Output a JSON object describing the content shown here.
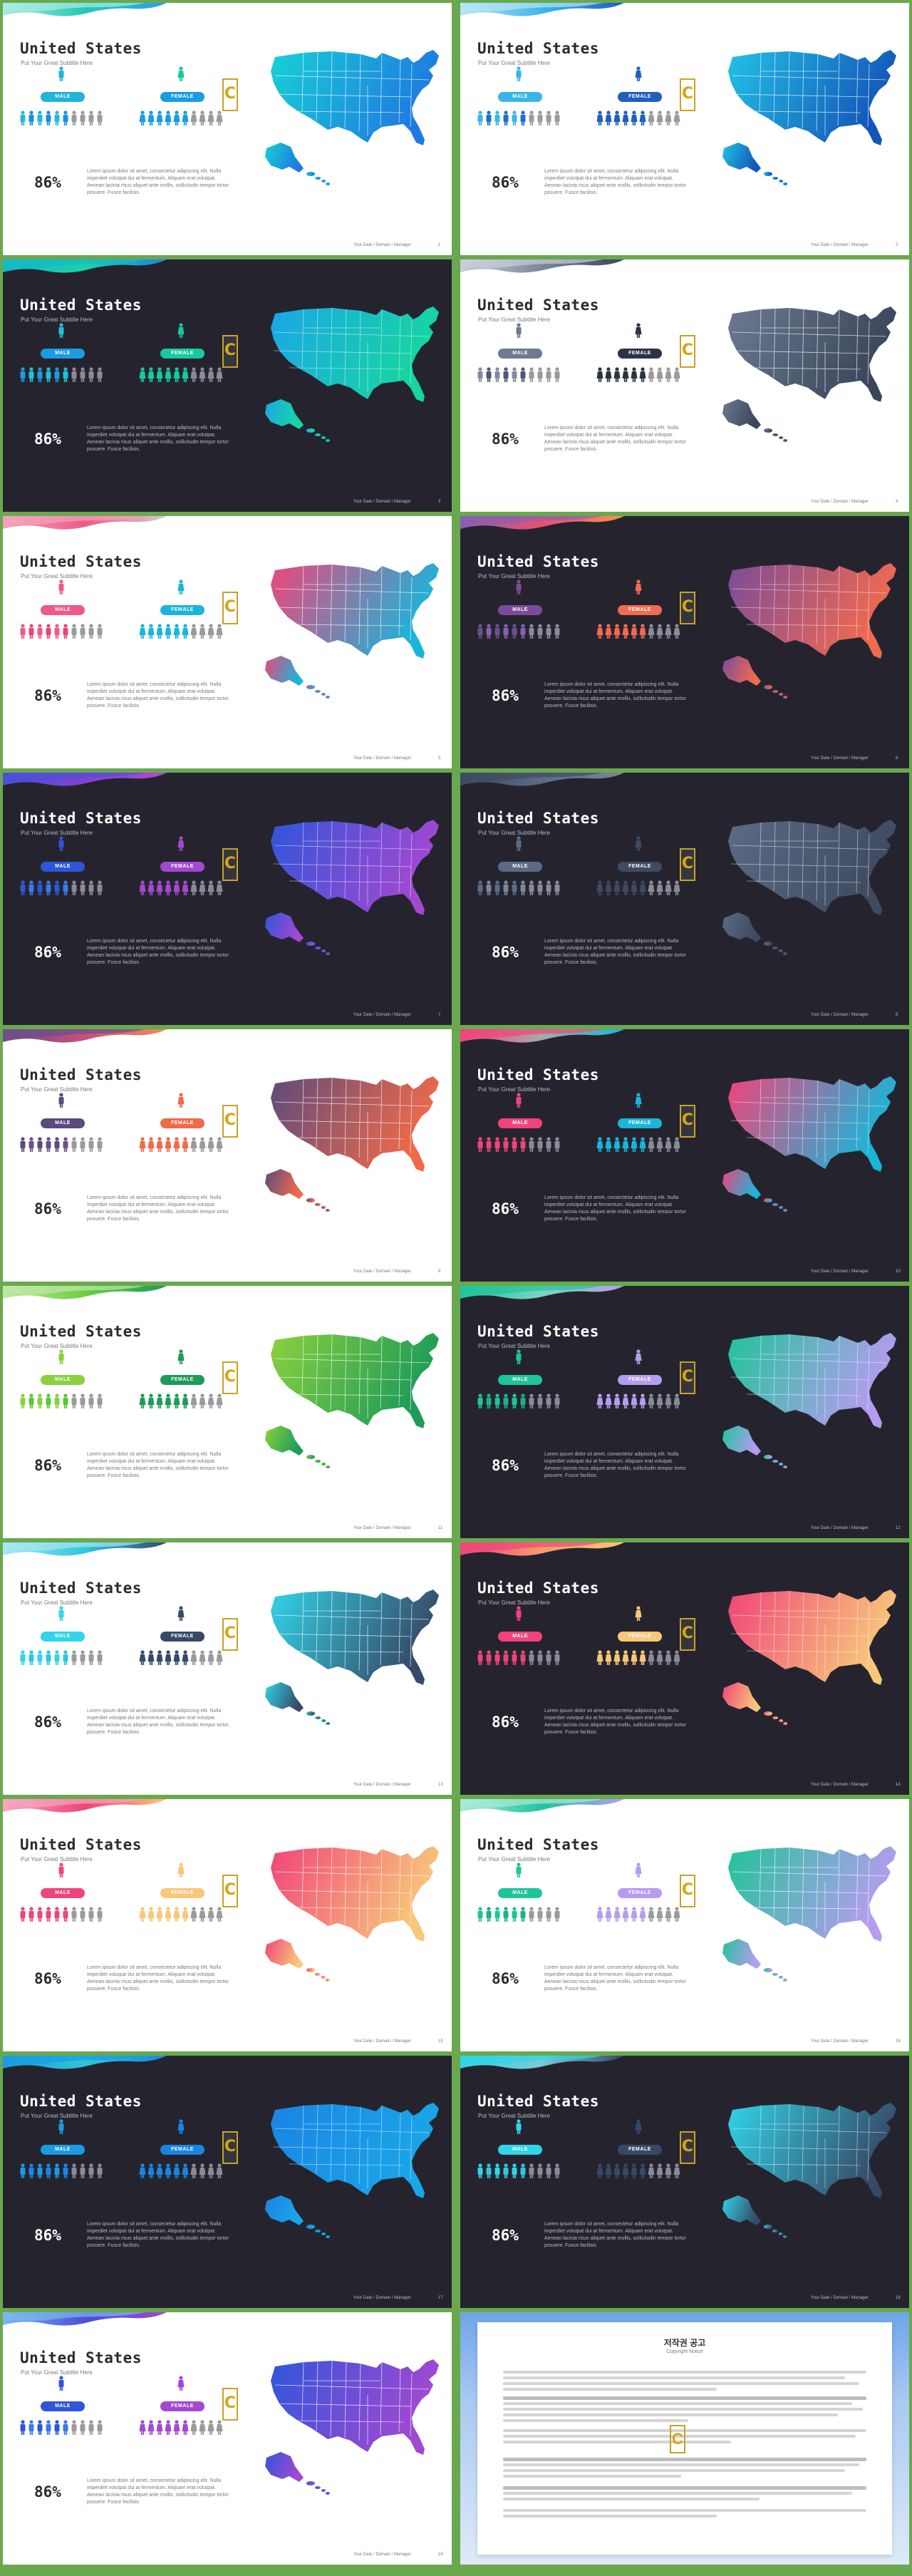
{
  "common": {
    "title": "United States",
    "subtitle": "Put Your Great Subtitle Here",
    "male_label": "MALE",
    "female_label": "FEMALE",
    "percent": "86%",
    "body": "Lorem ipsum dolor sit amet, consectetur adipiscing elit. Nulla imperdiet volutpat dui at fermentum. Aliquam erat volutpat. Aenean lacinia risus aliquet ante mollis, sollicitudin tempor tortor posuere. Fusce facilisis.",
    "footer": "Your Date / Domain / Manager",
    "brand_mark": "C"
  },
  "slides": [
    {
      "page": "1",
      "theme": "light",
      "accent": "#1aa3d8",
      "map": [
        "#17d1d6",
        "#1e7ae0"
      ],
      "wave": [
        "#a9ecdf",
        "#23c9b7",
        "#2aa0e6"
      ],
      "male": [
        "#26b8d9",
        "#1a8fe2"
      ],
      "female": [
        "#1a9be2",
        "#8a8a8a"
      ],
      "pill_m": "#22b3d9",
      "pill_f": "#1a9be2",
      "icon_m": "#22b3d9",
      "icon_f": "#18c8a0"
    },
    {
      "page": "2",
      "theme": "light",
      "accent": "#1a8fe2",
      "map": [
        "#22c2e6",
        "#1456b8"
      ],
      "wave": [
        "#b7e4f7",
        "#3fb6e8",
        "#1f5fbf"
      ],
      "male": [
        "#3ab6e6",
        "#1c6fd0"
      ],
      "female": [
        "#1f5fbf",
        "#8a8a8a"
      ],
      "pill_m": "#3ab6e6",
      "pill_f": "#1f5fbf",
      "icon_m": "#3ab6e6",
      "icon_f": "#1f5fbf"
    },
    {
      "page": "3",
      "theme": "dark",
      "accent": "#22b5e4",
      "map": [
        "#1aa6e8",
        "#17d6a0"
      ],
      "wave": [
        "#16b8c9",
        "#1cd1a6",
        "#1a84e3"
      ],
      "male": [
        "#1a9be2",
        "#1ac4d6"
      ],
      "female": [
        "#18c8a0",
        "#8a8a8a"
      ],
      "pill_m": "#1a9be2",
      "pill_f": "#18c8a0",
      "icon_m": "#1ac4d6",
      "icon_f": "#18c8a0"
    },
    {
      "page": "4",
      "theme": "light",
      "accent": "#4b5a74",
      "map": [
        "#6c7a92",
        "#3a455a"
      ],
      "wave": [
        "#c9cfd9",
        "#7a879c",
        "#3a455a"
      ],
      "male": [
        "#7f8ca2",
        "#4b5a74"
      ],
      "female": [
        "#2c3444",
        "#9a9a9a"
      ],
      "pill_m": "#6c7a92",
      "pill_f": "#2c3444",
      "icon_m": "#6c7a92",
      "icon_f": "#2c3444"
    },
    {
      "page": "5",
      "theme": "light",
      "accent": "#e8467a",
      "map": [
        "#f0447a",
        "#1ab5d9"
      ],
      "wave": [
        "#f3a3b9",
        "#ef5a86",
        "#cfcfcf"
      ],
      "male": [
        "#ef5a86",
        "#e8467a"
      ],
      "female": [
        "#1ab5d9",
        "#8a8a8a"
      ],
      "pill_m": "#ef5a86",
      "pill_f": "#1ab5d9",
      "icon_m": "#ef5a86",
      "icon_f": "#1ab5d9"
    },
    {
      "page": "6",
      "theme": "dark",
      "accent": "#f05a5a",
      "map": [
        "#7b4b9a",
        "#f26a4f"
      ],
      "wave": [
        "#8a5fb0",
        "#e9516e",
        "#f39253"
      ],
      "male": [
        "#6b4f90",
        "#8a5fb0"
      ],
      "female": [
        "#f26a4f",
        "#8a8a8a"
      ],
      "pill_m": "#7b4b9a",
      "pill_f": "#f26a4f",
      "icon_m": "#7b4b9a",
      "icon_f": "#f26a4f"
    },
    {
      "page": "7",
      "theme": "dark",
      "accent": "#3a63e0",
      "map": [
        "#2f56d9",
        "#a348d1"
      ],
      "wave": [
        "#4d4fd8",
        "#7e43cf",
        "#b34ad6"
      ],
      "male": [
        "#2f56d9",
        "#3a7ae6"
      ],
      "female": [
        "#a348d1",
        "#8a8a8a"
      ],
      "pill_m": "#2f56d9",
      "pill_f": "#a348d1",
      "icon_m": "#2f56d9",
      "icon_f": "#a348d1"
    },
    {
      "page": "8",
      "theme": "dark",
      "accent": "#5b6b86",
      "map": [
        "#5b6b86",
        "#3e4a60"
      ],
      "wave": [
        "#3e4a60",
        "#5b6b86",
        "#7a879c"
      ],
      "male": [
        "#5b6b86",
        "#7a879c"
      ],
      "female": [
        "#3e4a60",
        "#8a8a8a"
      ],
      "pill_m": "#5b6b86",
      "pill_f": "#3e4a60",
      "icon_m": "#5b6b86",
      "icon_f": "#3e4a60"
    },
    {
      "page": "9",
      "theme": "light",
      "accent": "#e8634c",
      "map": [
        "#5d4a7c",
        "#f06a4a"
      ],
      "wave": [
        "#6b4f88",
        "#c65080",
        "#f08d5a"
      ],
      "male": [
        "#5d4a7c",
        "#6b4f88"
      ],
      "female": [
        "#f06a4a",
        "#8a8a8a"
      ],
      "pill_m": "#5d4a7c",
      "pill_f": "#f06a4a",
      "icon_m": "#5d4a7c",
      "icon_f": "#f06a4a"
    },
    {
      "page": "10",
      "theme": "dark",
      "accent": "#f0447a",
      "map": [
        "#f0447a",
        "#1ab5d9"
      ],
      "wave": [
        "#f0447a",
        "#a9a9a9",
        "#1ab5d9"
      ],
      "male": [
        "#f0447a",
        "#e8467a"
      ],
      "female": [
        "#1ab5d9",
        "#8a8a8a"
      ],
      "pill_m": "#f0447a",
      "pill_f": "#1ab5d9",
      "icon_m": "#f0447a",
      "icon_f": "#1ab5d9"
    },
    {
      "page": "11",
      "theme": "light",
      "accent": "#5cc43a",
      "map": [
        "#8bd13e",
        "#1d9b58"
      ],
      "wave": [
        "#bfe8a4",
        "#6ccf3f",
        "#1d9b58"
      ],
      "male": [
        "#8bd13e",
        "#5cc43a"
      ],
      "female": [
        "#1d9b58",
        "#8a8a8a"
      ],
      "pill_m": "#8bd13e",
      "pill_f": "#1d9b58",
      "icon_m": "#8bd13e",
      "icon_f": "#1d9b58"
    },
    {
      "page": "12",
      "theme": "dark",
      "accent": "#20c49a",
      "map": [
        "#20c49a",
        "#b69cf0"
      ],
      "wave": [
        "#20c49a",
        "#7ad4c2",
        "#b69cf0"
      ],
      "male": [
        "#20c49a",
        "#1fae8c"
      ],
      "female": [
        "#b69cf0",
        "#8a8a8a"
      ],
      "pill_m": "#20c49a",
      "pill_f": "#b69cf0",
      "icon_m": "#20c49a",
      "icon_f": "#b69cf0"
    },
    {
      "page": "13",
      "theme": "light",
      "accent": "#2ec6de",
      "map": [
        "#31d4e8",
        "#364a68"
      ],
      "wave": [
        "#a6e8f2",
        "#31c6e0",
        "#364a68"
      ],
      "male": [
        "#31d4e8",
        "#2ec6de"
      ],
      "female": [
        "#364a68",
        "#8a8a8a"
      ],
      "pill_m": "#31d4e8",
      "pill_f": "#364a68",
      "icon_m": "#31d4e8",
      "icon_f": "#364a68"
    },
    {
      "page": "14",
      "theme": "dark",
      "accent": "#f0447a",
      "map": [
        "#f0447a",
        "#f8c77a"
      ],
      "wave": [
        "#f0447a",
        "#f59a6f",
        "#f8c77a"
      ],
      "male": [
        "#f0447a",
        "#e8467a"
      ],
      "female": [
        "#f8c77a",
        "#8a8a8a"
      ],
      "pill_m": "#f0447a",
      "pill_f": "#f8c77a",
      "icon_m": "#f0447a",
      "icon_f": "#f8c77a"
    },
    {
      "page": "15",
      "theme": "light",
      "accent": "#e8467a",
      "map": [
        "#f0447a",
        "#f8c77a"
      ],
      "wave": [
        "#f6a6bf",
        "#f0447a",
        "#f8c77a"
      ],
      "male": [
        "#f0447a",
        "#e8467a"
      ],
      "female": [
        "#f8c77a",
        "#8a8a8a"
      ],
      "pill_m": "#f0447a",
      "pill_f": "#f8c77a",
      "icon_m": "#f0447a",
      "icon_f": "#f8c77a"
    },
    {
      "page": "16",
      "theme": "light",
      "accent": "#20c49a",
      "map": [
        "#20c49a",
        "#b69cf0"
      ],
      "wave": [
        "#a8ebd9",
        "#20c49a",
        "#b69cf0"
      ],
      "male": [
        "#20c49a",
        "#1fae8c"
      ],
      "female": [
        "#b69cf0",
        "#8a8a8a"
      ],
      "pill_m": "#20c49a",
      "pill_f": "#b69cf0",
      "icon_m": "#20c49a",
      "icon_f": "#b69cf0"
    },
    {
      "page": "17",
      "theme": "dark",
      "accent": "#1a9be2",
      "map": [
        "#1a84e3",
        "#1aa6e8"
      ],
      "wave": [
        "#1a9be2",
        "#2fc6d6",
        "#1a84e3"
      ],
      "male": [
        "#1a9be2",
        "#1a84e3"
      ],
      "female": [
        "#1a84e3",
        "#8a8a8a"
      ],
      "pill_m": "#1a9be2",
      "pill_f": "#1a84e3",
      "icon_m": "#1a9be2",
      "icon_f": "#1a84e3"
    },
    {
      "page": "18",
      "theme": "dark",
      "accent": "#31d4e8",
      "map": [
        "#31d4e8",
        "#364a68"
      ],
      "wave": [
        "#31d4e8",
        "#7dc9d8",
        "#364a68"
      ],
      "male": [
        "#31d4e8",
        "#2ec6de"
      ],
      "female": [
        "#364a68",
        "#8a8a8a"
      ],
      "pill_m": "#31d4e8",
      "pill_f": "#364a68",
      "icon_m": "#31d4e8",
      "icon_f": "#364a68"
    },
    {
      "page": "19",
      "theme": "light",
      "accent": "#2f56d9",
      "map": [
        "#2f56d9",
        "#a348d1"
      ],
      "wave": [
        "#7bb8f0",
        "#4d4fd8",
        "#a348d1"
      ],
      "male": [
        "#2f56d9",
        "#3a7ae6"
      ],
      "female": [
        "#a348d1",
        "#8a8a8a"
      ],
      "pill_m": "#2f56d9",
      "pill_f": "#a348d1",
      "icon_m": "#2f56d9",
      "icon_f": "#a348d1"
    }
  ],
  "notice": {
    "title": "저작권 공고",
    "subtitle": "Copyright Notice"
  }
}
